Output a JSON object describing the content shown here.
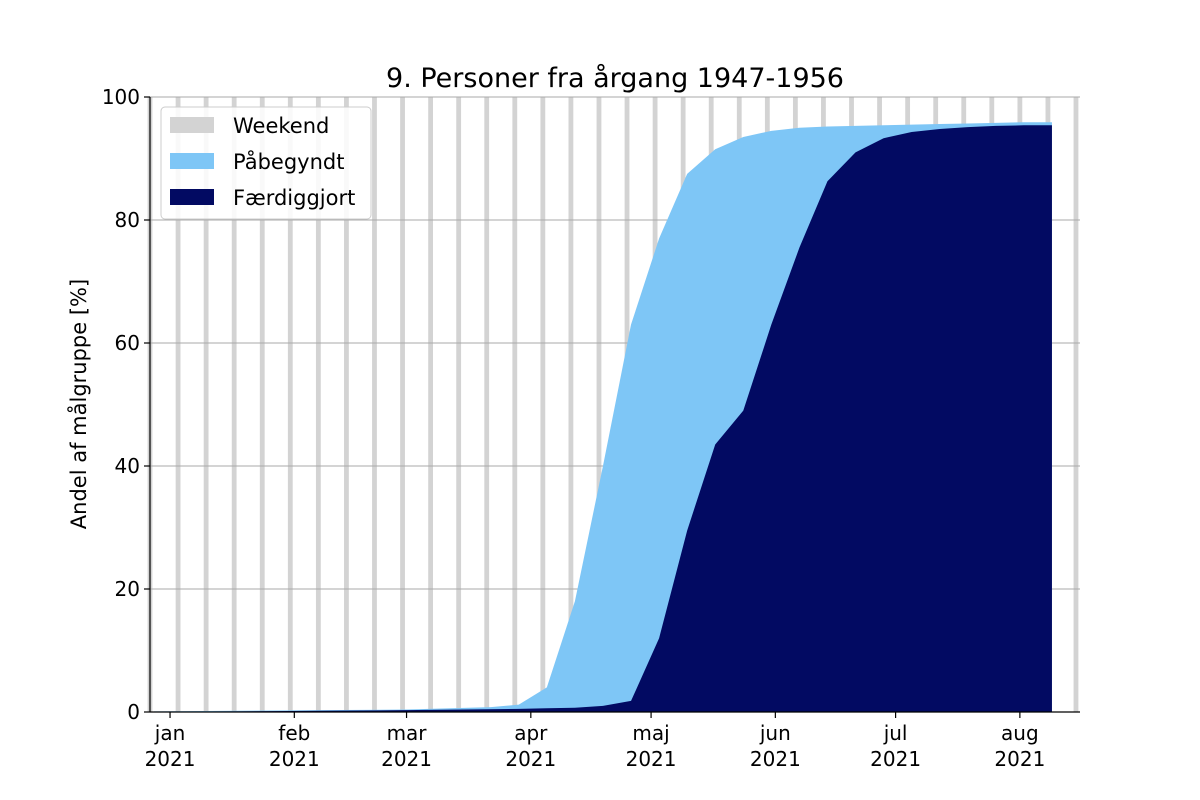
{
  "chart_data": {
    "type": "area",
    "title": "9. Personer fra årgang 1947-1956",
    "xlabel": "",
    "ylabel": "Andel af målgruppe [%]",
    "ylim": [
      0,
      100
    ],
    "xlim": [
      "2020-12-27",
      "2021-08-16"
    ],
    "y_ticks": [
      0,
      20,
      40,
      60,
      80,
      100
    ],
    "y_tick_labels": [
      "0",
      "20",
      "40",
      "60",
      "80",
      "100"
    ],
    "x_ticks": [
      {
        "date": "2021-01-01",
        "month": "jan",
        "year": "2021"
      },
      {
        "date": "2021-02-01",
        "month": "feb",
        "year": "2021"
      },
      {
        "date": "2021-03-01",
        "month": "mar",
        "year": "2021"
      },
      {
        "date": "2021-04-01",
        "month": "apr",
        "year": "2021"
      },
      {
        "date": "2021-05-01",
        "month": "maj",
        "year": "2021"
      },
      {
        "date": "2021-06-01",
        "month": "jun",
        "year": "2021"
      },
      {
        "date": "2021-07-01",
        "month": "jul",
        "year": "2021"
      },
      {
        "date": "2021-08-01",
        "month": "aug",
        "year": "2021"
      }
    ],
    "grid": "horizontal",
    "legend_position": "top-left",
    "weekend_dates": [
      "2020-12-27",
      "2021-01-03",
      "2021-01-10",
      "2021-01-17",
      "2021-01-24",
      "2021-01-31",
      "2021-02-07",
      "2021-02-14",
      "2021-02-21",
      "2021-02-28",
      "2021-03-07",
      "2021-03-14",
      "2021-03-21",
      "2021-03-28",
      "2021-04-04",
      "2021-04-11",
      "2021-04-18",
      "2021-04-25",
      "2021-05-02",
      "2021-05-09",
      "2021-05-16",
      "2021-05-23",
      "2021-05-30",
      "2021-06-06",
      "2021-06-13",
      "2021-06-20",
      "2021-06-27",
      "2021-07-04",
      "2021-07-11",
      "2021-07-18",
      "2021-07-25",
      "2021-08-01",
      "2021-08-08",
      "2021-08-15"
    ],
    "series": [
      {
        "name": "Weekend",
        "color": "#d3d3d3",
        "kind": "weekend-bars"
      },
      {
        "name": "Påbegyndt",
        "color": "#7ec6f6",
        "x": [
          "2020-12-28",
          "2021-01-18",
          "2021-02-08",
          "2021-03-01",
          "2021-03-22",
          "2021-03-29",
          "2021-04-05",
          "2021-04-12",
          "2021-04-19",
          "2021-04-26",
          "2021-05-03",
          "2021-05-10",
          "2021-05-17",
          "2021-05-24",
          "2021-05-31",
          "2021-06-07",
          "2021-06-14",
          "2021-06-21",
          "2021-06-28",
          "2021-07-05",
          "2021-07-12",
          "2021-07-19",
          "2021-07-26",
          "2021-08-02",
          "2021-08-09"
        ],
        "values": [
          0.1,
          0.2,
          0.3,
          0.4,
          0.8,
          1.2,
          4.0,
          18.0,
          40.0,
          63.0,
          77.0,
          87.5,
          91.5,
          93.5,
          94.5,
          95.0,
          95.2,
          95.3,
          95.4,
          95.5,
          95.6,
          95.7,
          95.8,
          95.9,
          95.9
        ]
      },
      {
        "name": "Færdiggjort",
        "color": "#020a62",
        "x": [
          "2020-12-28",
          "2021-01-18",
          "2021-02-08",
          "2021-03-01",
          "2021-03-29",
          "2021-04-05",
          "2021-04-12",
          "2021-04-19",
          "2021-04-26",
          "2021-05-03",
          "2021-05-10",
          "2021-05-17",
          "2021-05-24",
          "2021-05-31",
          "2021-06-07",
          "2021-06-14",
          "2021-06-21",
          "2021-06-28",
          "2021-07-05",
          "2021-07-12",
          "2021-07-19",
          "2021-07-26",
          "2021-08-02",
          "2021-08-09"
        ],
        "values": [
          0.05,
          0.1,
          0.2,
          0.3,
          0.5,
          0.6,
          0.7,
          1.0,
          1.8,
          12.0,
          29.5,
          43.5,
          49.0,
          63.0,
          75.5,
          86.3,
          91.0,
          93.3,
          94.3,
          94.8,
          95.1,
          95.3,
          95.4,
          95.4
        ]
      }
    ]
  }
}
